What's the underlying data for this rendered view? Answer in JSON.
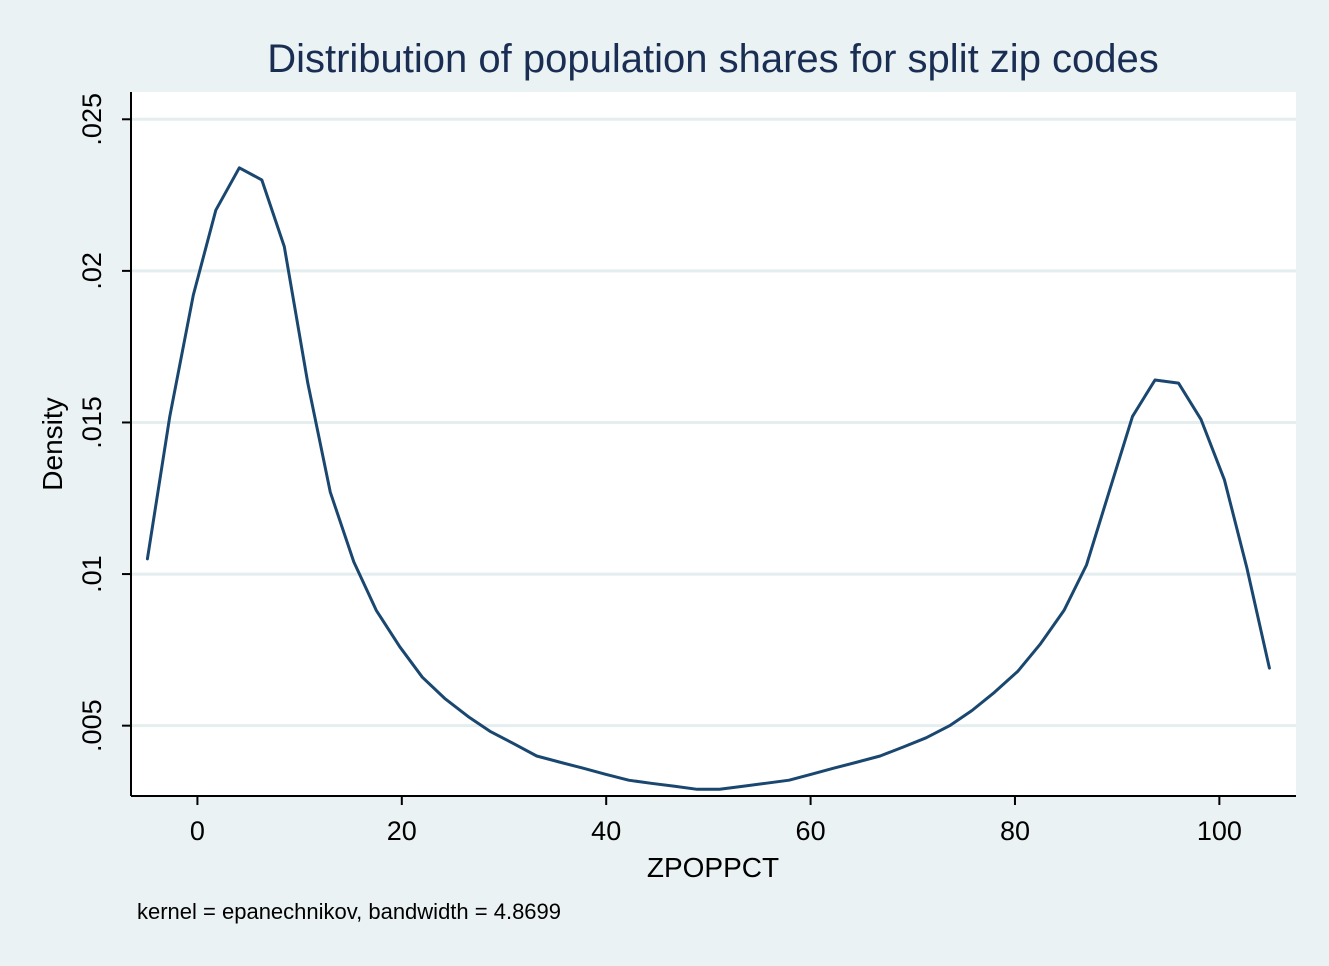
{
  "chart_data": {
    "type": "line",
    "title": "Distribution of population shares for split zip codes",
    "xlabel": "ZPOPPCT",
    "ylabel": "Density",
    "note": "kernel = epanechnikov, bandwidth = 4.8699",
    "xlim": [
      -6.5,
      107.5
    ],
    "ylim": [
      0.00268,
      0.0259
    ],
    "x_ticks": [
      {
        "value": 0,
        "label": "0"
      },
      {
        "value": 20,
        "label": "20"
      },
      {
        "value": 40,
        "label": "40"
      },
      {
        "value": 60,
        "label": "60"
      },
      {
        "value": 80,
        "label": "80"
      },
      {
        "value": 100,
        "label": "100"
      }
    ],
    "y_ticks": [
      {
        "value": 0.005,
        "label": ".005"
      },
      {
        "value": 0.01,
        "label": ".01"
      },
      {
        "value": 0.015,
        "label": ".015"
      },
      {
        "value": 0.02,
        "label": ".02"
      },
      {
        "value": 0.025,
        "label": ".025"
      }
    ],
    "grid": true,
    "line_color": "#1a476f",
    "series": [
      {
        "name": "Density",
        "x": [
          -4.9,
          -2.7,
          -0.4,
          1.8,
          4.1,
          6.3,
          8.5,
          10.8,
          13.0,
          15.3,
          17.5,
          19.8,
          22.0,
          24.2,
          26.5,
          28.7,
          31.0,
          33.2,
          35.4,
          37.7,
          39.9,
          42.2,
          44.4,
          46.7,
          48.9,
          51.1,
          53.4,
          55.6,
          57.9,
          60.1,
          62.3,
          64.6,
          66.8,
          69.1,
          71.3,
          73.6,
          75.8,
          78.0,
          80.3,
          82.5,
          84.8,
          87.0,
          89.2,
          91.5,
          93.7,
          96.0,
          98.2,
          100.5,
          102.7,
          104.9
        ],
        "values": [
          0.0105,
          0.0152,
          0.0192,
          0.022,
          0.0234,
          0.023,
          0.0208,
          0.0163,
          0.0127,
          0.0104,
          0.0088,
          0.0076,
          0.0066,
          0.0059,
          0.0053,
          0.0048,
          0.0044,
          0.004,
          0.0038,
          0.0036,
          0.0034,
          0.0032,
          0.0031,
          0.003,
          0.0029,
          0.0029,
          0.003,
          0.0031,
          0.0032,
          0.0034,
          0.0036,
          0.0038,
          0.004,
          0.0043,
          0.0046,
          0.005,
          0.0055,
          0.0061,
          0.0068,
          0.0077,
          0.0088,
          0.0103,
          0.0127,
          0.0152,
          0.0164,
          0.0163,
          0.0151,
          0.0131,
          0.0102,
          0.0069
        ]
      }
    ]
  }
}
